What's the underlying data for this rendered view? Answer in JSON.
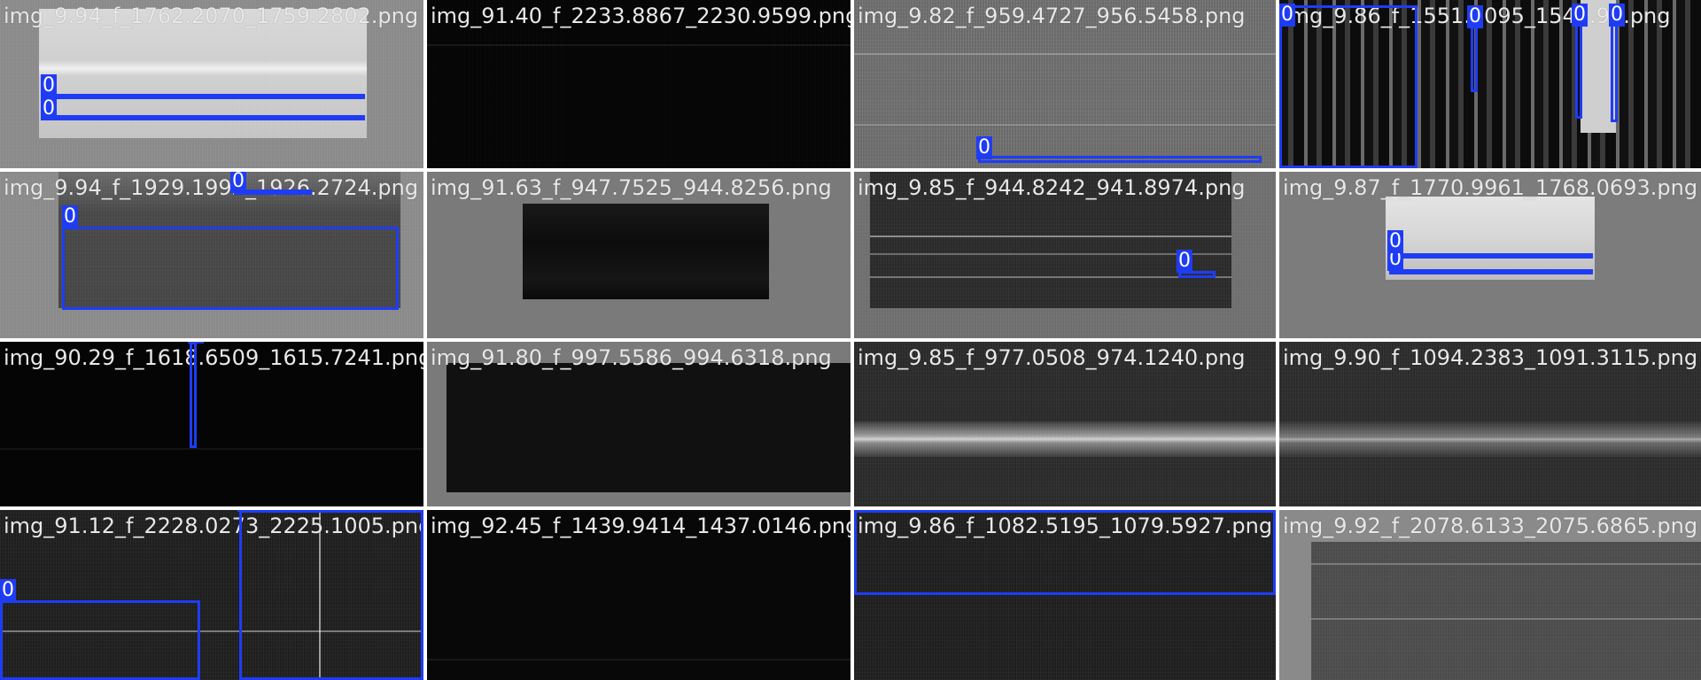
{
  "tiles": [
    {
      "title": "img_9.94_f_1762.2070_1759.2802.png",
      "labels": [
        "0",
        "0"
      ]
    },
    {
      "title": "img_91.40_f_2233.8867_2230.9599.png",
      "labels": []
    },
    {
      "title": "img_9.82_f_959.4727_956.5458.png",
      "labels": [
        "0"
      ]
    },
    {
      "title": "img_9.86_f_1551.2095_1548.9...png",
      "labels": [
        "0",
        "0",
        "0",
        "0"
      ]
    },
    {
      "title": "img_9.94_f_1929.1992_1926.2724.png",
      "labels": [
        "0",
        "0"
      ]
    },
    {
      "title": "img_91.63_f_947.7525_944.8256.png",
      "labels": []
    },
    {
      "title": "img_9.85_f_944.8242_941.8974.png",
      "labels": [
        "0"
      ]
    },
    {
      "title": "img_9.87_f_1770.9961_1768.0693.png",
      "labels": [
        "0",
        "0"
      ]
    },
    {
      "title": "img_90.29_f_1618.6509_1615.7241.png",
      "labels": [
        "0"
      ]
    },
    {
      "title": "img_91.80_f_997.5586_994.6318.png",
      "labels": []
    },
    {
      "title": "img_9.85_f_977.0508_974.1240.png",
      "labels": []
    },
    {
      "title": "img_9.90_f_1094.2383_1091.3115.png",
      "labels": []
    },
    {
      "title": "img_91.12_f_2228.0273_2225.1005.png",
      "labels": [
        "0",
        "0"
      ]
    },
    {
      "title": "img_92.45_f_1439.9414_1437.0146.png",
      "labels": []
    },
    {
      "title": "img_9.86_f_1082.5195_1079.5927.png",
      "labels": [
        "0"
      ]
    },
    {
      "title": "img_9.92_f_2078.6133_2075.6865.png",
      "labels": []
    }
  ],
  "colors": {
    "box": "#1f3cf5",
    "text": "#e8e8e8"
  }
}
